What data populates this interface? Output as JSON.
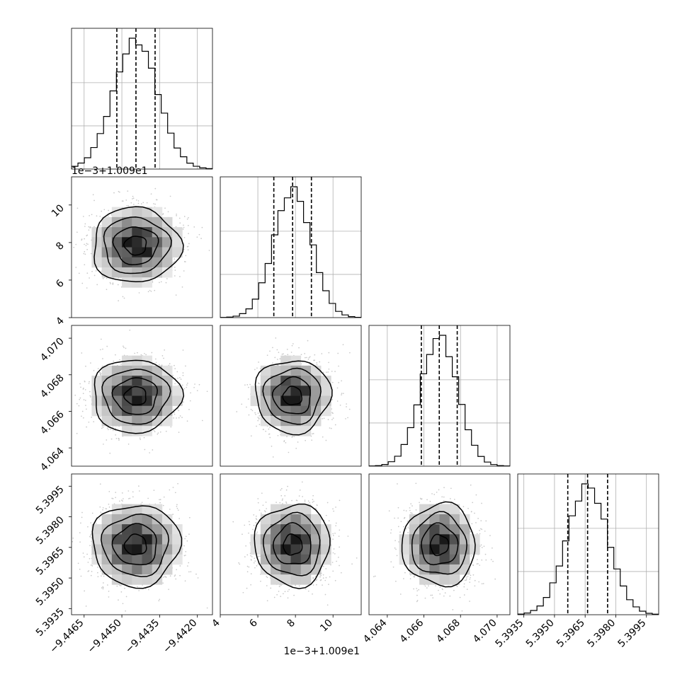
{
  "chart_data": {
    "type": "corner",
    "n_params": 4,
    "params": [
      {
        "range": [
          -9.447,
          -9.4414
        ],
        "ticks": [
          -9.4465,
          -9.445,
          -9.4435,
          -9.442
        ],
        "tick_labels": [
          "−9.4465",
          "−9.4450",
          "−9.4435",
          "−9.4420"
        ],
        "mean": -9.44445,
        "sd": 0.00087,
        "quantiles": [
          -9.4452,
          -9.44444,
          -9.44368
        ]
      },
      {
        "range": [
          4.0,
          11.5
        ],
        "ticks": [
          4,
          6,
          8,
          10
        ],
        "tick_labels": [
          "4",
          "6",
          "8",
          "10"
        ],
        "mean": 7.85,
        "sd": 1.0,
        "quantiles": [
          6.85,
          7.85,
          8.85
        ]
      },
      {
        "range": [
          4.063,
          4.0707
        ],
        "ticks": [
          4.064,
          4.066,
          4.068,
          4.07
        ],
        "tick_labels": [
          "4.064",
          "4.066",
          "4.068",
          "4.070"
        ],
        "mean": 4.06684,
        "sd": 0.001,
        "quantiles": [
          4.06586,
          4.06684,
          4.06782
        ]
      },
      {
        "range": [
          5.3932,
          5.4001
        ],
        "ticks": [
          5.3935,
          5.395,
          5.3965,
          5.398,
          5.3995
        ],
        "tick_labels": [
          "5.3935",
          "5.3950",
          "5.3965",
          "5.3980",
          "5.3995"
        ],
        "mean": 5.39662,
        "sd": 0.001,
        "quantiles": [
          5.39565,
          5.39662,
          5.3976
        ]
      }
    ],
    "offset_labels": {
      "row1_y": "1e−3+1.009e1",
      "bottom_x2": "1e−3+1.009e1"
    },
    "grid": true,
    "quantile_lines": "dashed",
    "contour_levels": 4,
    "colors": {
      "hist": "#000000",
      "contour": "#000000",
      "points": "#c8c8c8",
      "grid": "#b0b0b0"
    }
  }
}
